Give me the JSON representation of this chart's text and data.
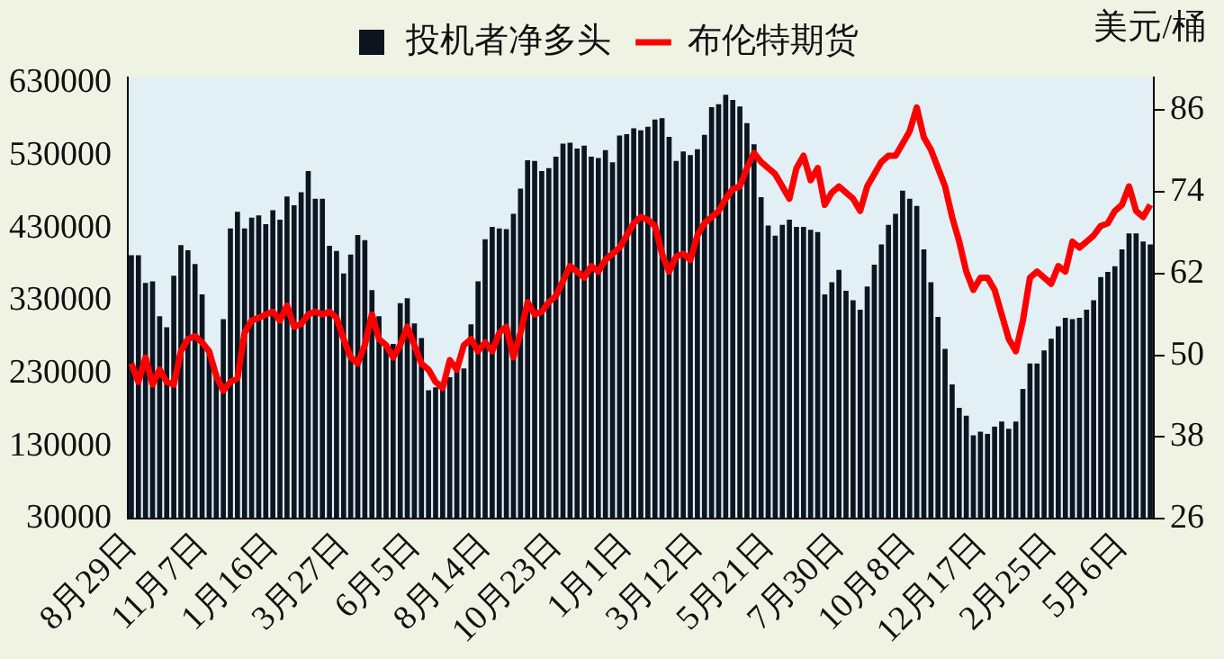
{
  "chart_data": {
    "type": "bar",
    "y2label": "美元/桶",
    "legend": "top",
    "grid": false,
    "categories": [
      "8月29日",
      null,
      null,
      null,
      null,
      null,
      null,
      null,
      null,
      null,
      "11月7日",
      null,
      null,
      null,
      null,
      null,
      null,
      null,
      null,
      null,
      "1月16日",
      null,
      null,
      null,
      null,
      null,
      null,
      null,
      null,
      null,
      "3月27日",
      null,
      null,
      null,
      null,
      null,
      null,
      null,
      null,
      null,
      "6月5日",
      null,
      null,
      null,
      null,
      null,
      null,
      null,
      null,
      null,
      "8月14日",
      null,
      null,
      null,
      null,
      null,
      null,
      null,
      null,
      null,
      "10月23日",
      null,
      null,
      null,
      null,
      null,
      null,
      null,
      null,
      null,
      "1月1日",
      null,
      null,
      null,
      null,
      null,
      null,
      null,
      null,
      null,
      "3月12日",
      null,
      null,
      null,
      null,
      null,
      null,
      null,
      null,
      null,
      "5月21日",
      null,
      null,
      null,
      null,
      null,
      null,
      null,
      null,
      null,
      "7月30日",
      null,
      null,
      null,
      null,
      null,
      null,
      null,
      null,
      null,
      "10月8日",
      null,
      null,
      null,
      null,
      null,
      null,
      null,
      null,
      null,
      "12月17日",
      null,
      null,
      null,
      null,
      null,
      null,
      null,
      null,
      null,
      "2月25日",
      null,
      null,
      null,
      null,
      null,
      null,
      null,
      null,
      null,
      "5月6日",
      null,
      null,
      null,
      null
    ],
    "ylim": [
      30000,
      638000
    ],
    "yticks": [
      30000,
      130000,
      230000,
      330000,
      430000,
      530000,
      630000
    ],
    "y2lim": [
      26,
      90.8
    ],
    "y2ticks": [
      26,
      38,
      50,
      62,
      74,
      86
    ],
    "series": [
      {
        "name": "投机者净多头",
        "color": "#0d1520",
        "values": [
          393000,
          393000,
          355000,
          357000,
          309000,
          294000,
          365000,
          407000,
          400000,
          381000,
          339000,
          260000,
          232000,
          305000,
          430000,
          453000,
          430000,
          445000,
          448000,
          436000,
          455000,
          442000,
          474000,
          462000,
          480000,
          509000,
          471000,
          471000,
          406000,
          399000,
          368000,
          394000,
          421000,
          414000,
          345000,
          309000,
          267000,
          271000,
          327000,
          334000,
          299000,
          279000,
          207000,
          211000,
          215000,
          225000,
          238000,
          237000,
          298000,
          357000,
          415000,
          432000,
          430000,
          429000,
          450000,
          485000,
          524000,
          523000,
          509000,
          513000,
          529000,
          547000,
          548000,
          540000,
          544000,
          529000,
          527000,
          538000,
          521000,
          558000,
          560000,
          568000,
          565000,
          570000,
          580000,
          582000,
          556000,
          523000,
          536000,
          531000,
          539000,
          559000,
          597000,
          601000,
          614000,
          607000,
          598000,
          575000,
          546000,
          473000,
          434000,
          420000,
          435000,
          442000,
          432000,
          432000,
          428000,
          425000,
          339000,
          356000,
          373000,
          344000,
          331000,
          318000,
          350000,
          380000,
          408000,
          435000,
          450000,
          482000,
          471000,
          461000,
          401000,
          356000,
          308000,
          264000,
          215000,
          183000,
          172000,
          145000,
          150000,
          147000,
          157000,
          164000,
          154000,
          164000,
          209000,
          244000,
          244000,
          262000,
          278000,
          295000,
          307000,
          305000,
          307000,
          318000,
          331000,
          363000,
          370000,
          378000,
          401000,
          423000,
          423000,
          412000,
          408000
        ]
      },
      {
        "name": "布伦特期货",
        "type": "line",
        "axis": "y2",
        "color": "#ff0000",
        "marker": "none",
        "line_style": "solid",
        "values": [
          48.8,
          46.1,
          49.7,
          45.7,
          47.9,
          46.1,
          45.7,
          50.6,
          52.4,
          52.8,
          51.9,
          50.6,
          47.0,
          44.8,
          46.1,
          46.6,
          53.3,
          55.1,
          55.5,
          56.0,
          56.4,
          55.1,
          57.3,
          54.2,
          54.6,
          56.0,
          56.4,
          56.0,
          56.4,
          55.5,
          52.4,
          49.7,
          48.8,
          51.5,
          56.0,
          52.4,
          51.5,
          49.7,
          51.5,
          54.2,
          51.5,
          48.8,
          47.9,
          46.1,
          45.2,
          49.3,
          47.9,
          51.5,
          52.4,
          50.6,
          51.9,
          50.6,
          53.3,
          54.2,
          49.7,
          53.3,
          57.8,
          56.0,
          56.4,
          57.8,
          58.7,
          60.9,
          63.1,
          62.3,
          61.4,
          63.1,
          62.3,
          64.0,
          64.9,
          65.8,
          67.6,
          69.4,
          70.3,
          69.9,
          69.0,
          64.9,
          62.3,
          64.5,
          64.9,
          64.0,
          67.6,
          69.4,
          70.3,
          71.2,
          73.0,
          74.4,
          74.8,
          77.5,
          79.7,
          78.4,
          77.5,
          76.6,
          74.8,
          73.0,
          77.5,
          79.3,
          75.7,
          77.5,
          72.1,
          73.9,
          74.8,
          73.9,
          73.0,
          71.2,
          74.8,
          76.6,
          78.4,
          79.3,
          79.3,
          81.1,
          82.9,
          86.4,
          82.0,
          80.2,
          77.5,
          74.8,
          70.3,
          66.7,
          62.3,
          59.6,
          61.4,
          61.4,
          59.6,
          56.0,
          52.4,
          50.6,
          55.1,
          61.4,
          62.3,
          61.4,
          60.5,
          63.1,
          62.3,
          66.7,
          65.8,
          66.7,
          67.6,
          69.0,
          69.4,
          71.2,
          72.1,
          74.8,
          71.2,
          70.3,
          72.1
        ]
      }
    ]
  }
}
